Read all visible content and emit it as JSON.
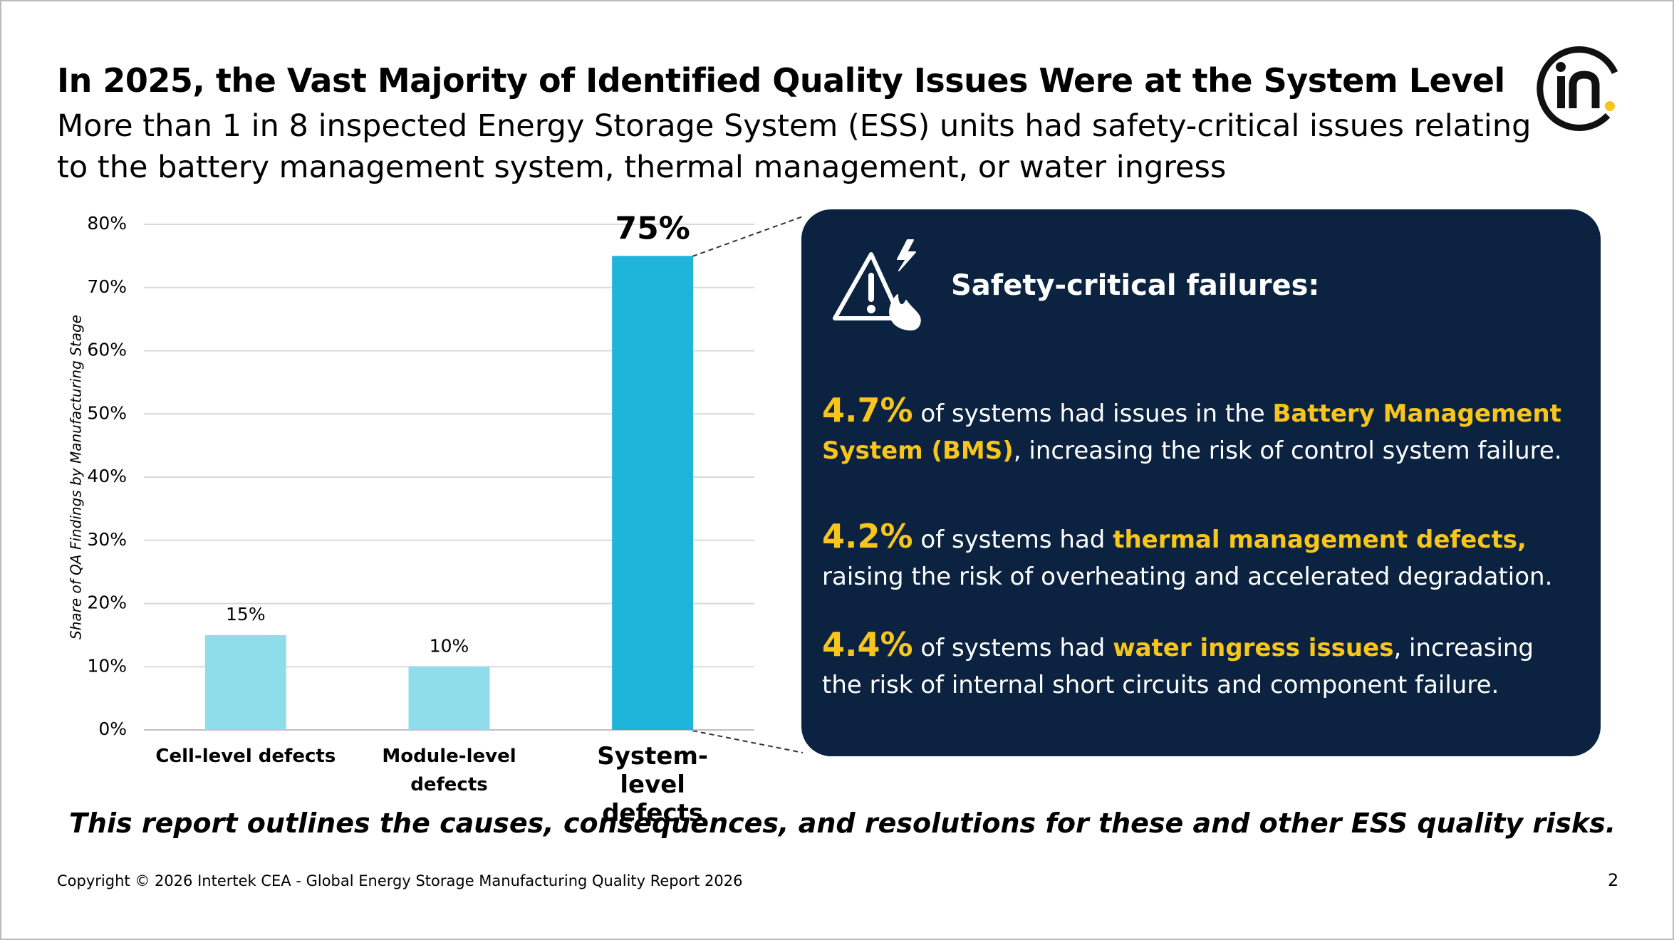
{
  "header": {
    "title": "In 2025, the Vast Majority of Identified Quality Issues Were at the System Level",
    "subtitle": "More than 1 in 8 inspected Energy Storage System (ESS) units had safety-critical issues relating to the battery management system, thermal management, or water ingress"
  },
  "chart_data": {
    "type": "bar",
    "y_label": "Share of QA Findings by Manufacturing Stage",
    "categories": [
      "Cell-level defects",
      "Module-level defects",
      "System-level defects"
    ],
    "values": [
      15,
      10,
      75
    ],
    "value_labels": [
      "15%",
      "10%",
      "75%"
    ],
    "colors": [
      "#8fdcea",
      "#8fdcea",
      "#1fb4d9"
    ],
    "ylim": [
      0,
      80
    ],
    "yticks": [
      {
        "value": 0,
        "label": "0%"
      },
      {
        "value": 10,
        "label": "10%"
      },
      {
        "value": 20,
        "label": "20%"
      },
      {
        "value": 30,
        "label": "30%"
      },
      {
        "value": 40,
        "label": "40%"
      },
      {
        "value": 50,
        "label": "50%"
      },
      {
        "value": 60,
        "label": "60%"
      },
      {
        "value": 70,
        "label": "70%"
      },
      {
        "value": 80,
        "label": "80%"
      }
    ],
    "grid": true
  },
  "panel": {
    "title": "Safety-critical failures:",
    "items": [
      {
        "stat": "4.7%",
        "before": " of systems had issues in the ",
        "highlight": "Battery Management System (BMS)",
        "after": ", increasing the risk of control system failure."
      },
      {
        "stat": "4.2%",
        "before": " of systems had ",
        "highlight": "thermal management defects,",
        "after": " raising the risk of overheating and accelerated degradation."
      },
      {
        "stat": "4.4%",
        "before": " of systems had ",
        "highlight": "water ingress issues",
        "after": ", increasing the risk of internal short circuits and component failure."
      }
    ]
  },
  "note": "This report outlines the causes, consequences, and resolutions for these and other ESS quality risks.",
  "footer": {
    "copyright": "Copyright © 2026 Intertek CEA - Global Energy Storage Manufacturing Quality Report 2026",
    "page": "2"
  }
}
